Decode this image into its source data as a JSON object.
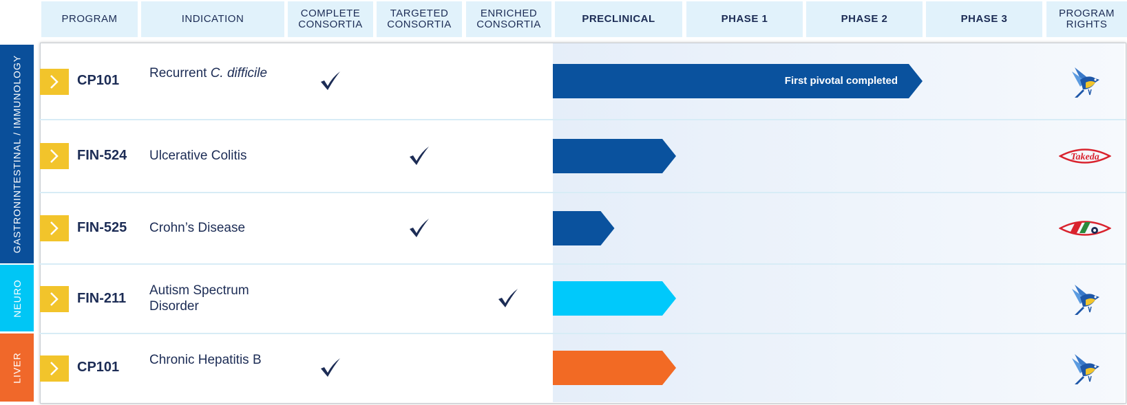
{
  "chart_data": {
    "type": "table",
    "columns": [
      "PROGRAM",
      "INDICATION",
      "COMPLETE CONSORTIA",
      "TARGETED CONSORTIA",
      "ENRICHED CONSORTIA",
      "PRECLINICAL",
      "PHASE 1",
      "PHASE 2",
      "PHASE 3",
      "PROGRAM RIGHTS"
    ],
    "phases": [
      "PRECLINICAL",
      "PHASE 1",
      "PHASE 2",
      "PHASE 3"
    ],
    "therapeutic_areas": [
      {
        "name": "GASTRONINTESTINAL / IMMUNOLOGY",
        "color": "#0a4f9a"
      },
      {
        "name": "NEURO",
        "color": "#00c6f5"
      },
      {
        "name": "LIVER",
        "color": "#f0682a"
      }
    ],
    "rows": [
      {
        "program": "CP101",
        "indication": "Recurrent",
        "indication_italic": "C. difficile",
        "consortia": "complete",
        "progress_phases": 3.0,
        "bar_label": "First pivotal completed",
        "bar_color": "#0a529e",
        "rights": "bird-logo"
      },
      {
        "program": "FIN-524",
        "indication": "Ulcerative Colitis",
        "indication_italic": "",
        "consortia": "targeted",
        "progress_phases": 1.0,
        "bar_label": "",
        "bar_color": "#0a529e",
        "rights": "takeda-logo"
      },
      {
        "program": "FIN-525",
        "indication": "Crohn’s Disease",
        "indication_italic": "",
        "consortia": "targeted",
        "progress_phases": 0.5,
        "bar_label": "",
        "bar_color": "#0a529e",
        "rights": "partner-eye-logo"
      },
      {
        "program": "FIN-211",
        "indication": "Autism Spectrum Disorder",
        "indication_italic": "",
        "consortia": "enriched",
        "progress_phases": 1.0,
        "bar_label": "",
        "bar_color": "#00c9fb",
        "rights": "bird-logo"
      },
      {
        "program": "CP101",
        "indication": "Chronic Hepatitis B",
        "indication_italic": "",
        "consortia": "complete",
        "progress_phases": 1.0,
        "bar_label": "",
        "bar_color": "#f26a24",
        "rights": "bird-logo"
      }
    ],
    "takeda_text": "Takeda",
    "colors": {
      "header_bg": "#e1f2fb",
      "accent_yellow": "#f2c42b",
      "check": "#1c2c55"
    }
  }
}
